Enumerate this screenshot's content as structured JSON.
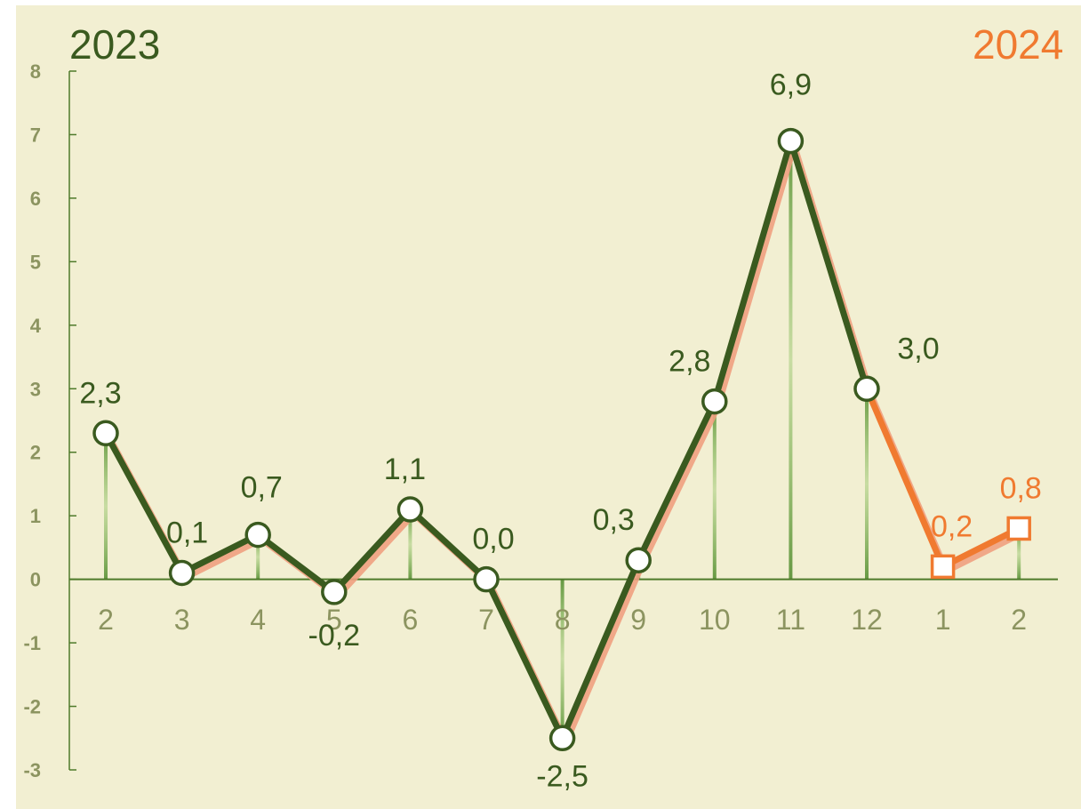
{
  "chart_data": {
    "type": "line",
    "categories": [
      "2",
      "3",
      "4",
      "5",
      "6",
      "7",
      "8",
      "9",
      "10",
      "11",
      "12",
      "1",
      "2"
    ],
    "year_labels": {
      "left": "2023",
      "right": "2024"
    },
    "ylim": [
      -3,
      8
    ],
    "yticks": [
      "-3",
      "-2",
      "-1",
      "0",
      "1",
      "2",
      "3",
      "4",
      "5",
      "6",
      "7",
      "8"
    ],
    "grid": false,
    "legend": "none",
    "series": [
      {
        "values": [
          2.3,
          0.1,
          0.7,
          -0.2,
          1.1,
          0.0,
          -2.5,
          0.3,
          2.8,
          6.9,
          3.0,
          0.2,
          0.8
        ]
      }
    ],
    "data_labels": [
      "2,3",
      "0,1",
      "0,7",
      "-0,2",
      "1,1",
      "0,0",
      "-2,5",
      "0,3",
      "2,8",
      "6,9",
      "3,0",
      "0,2",
      "0,8"
    ],
    "segment_2024_start_index": 10
  },
  "colors": {
    "background": "#f2efd2",
    "green": "#3a5a1f",
    "orange": "#f07a30",
    "salmon": "#f0a080",
    "axis_text": "#8c9460",
    "axis_line": "#4e7a2a"
  }
}
